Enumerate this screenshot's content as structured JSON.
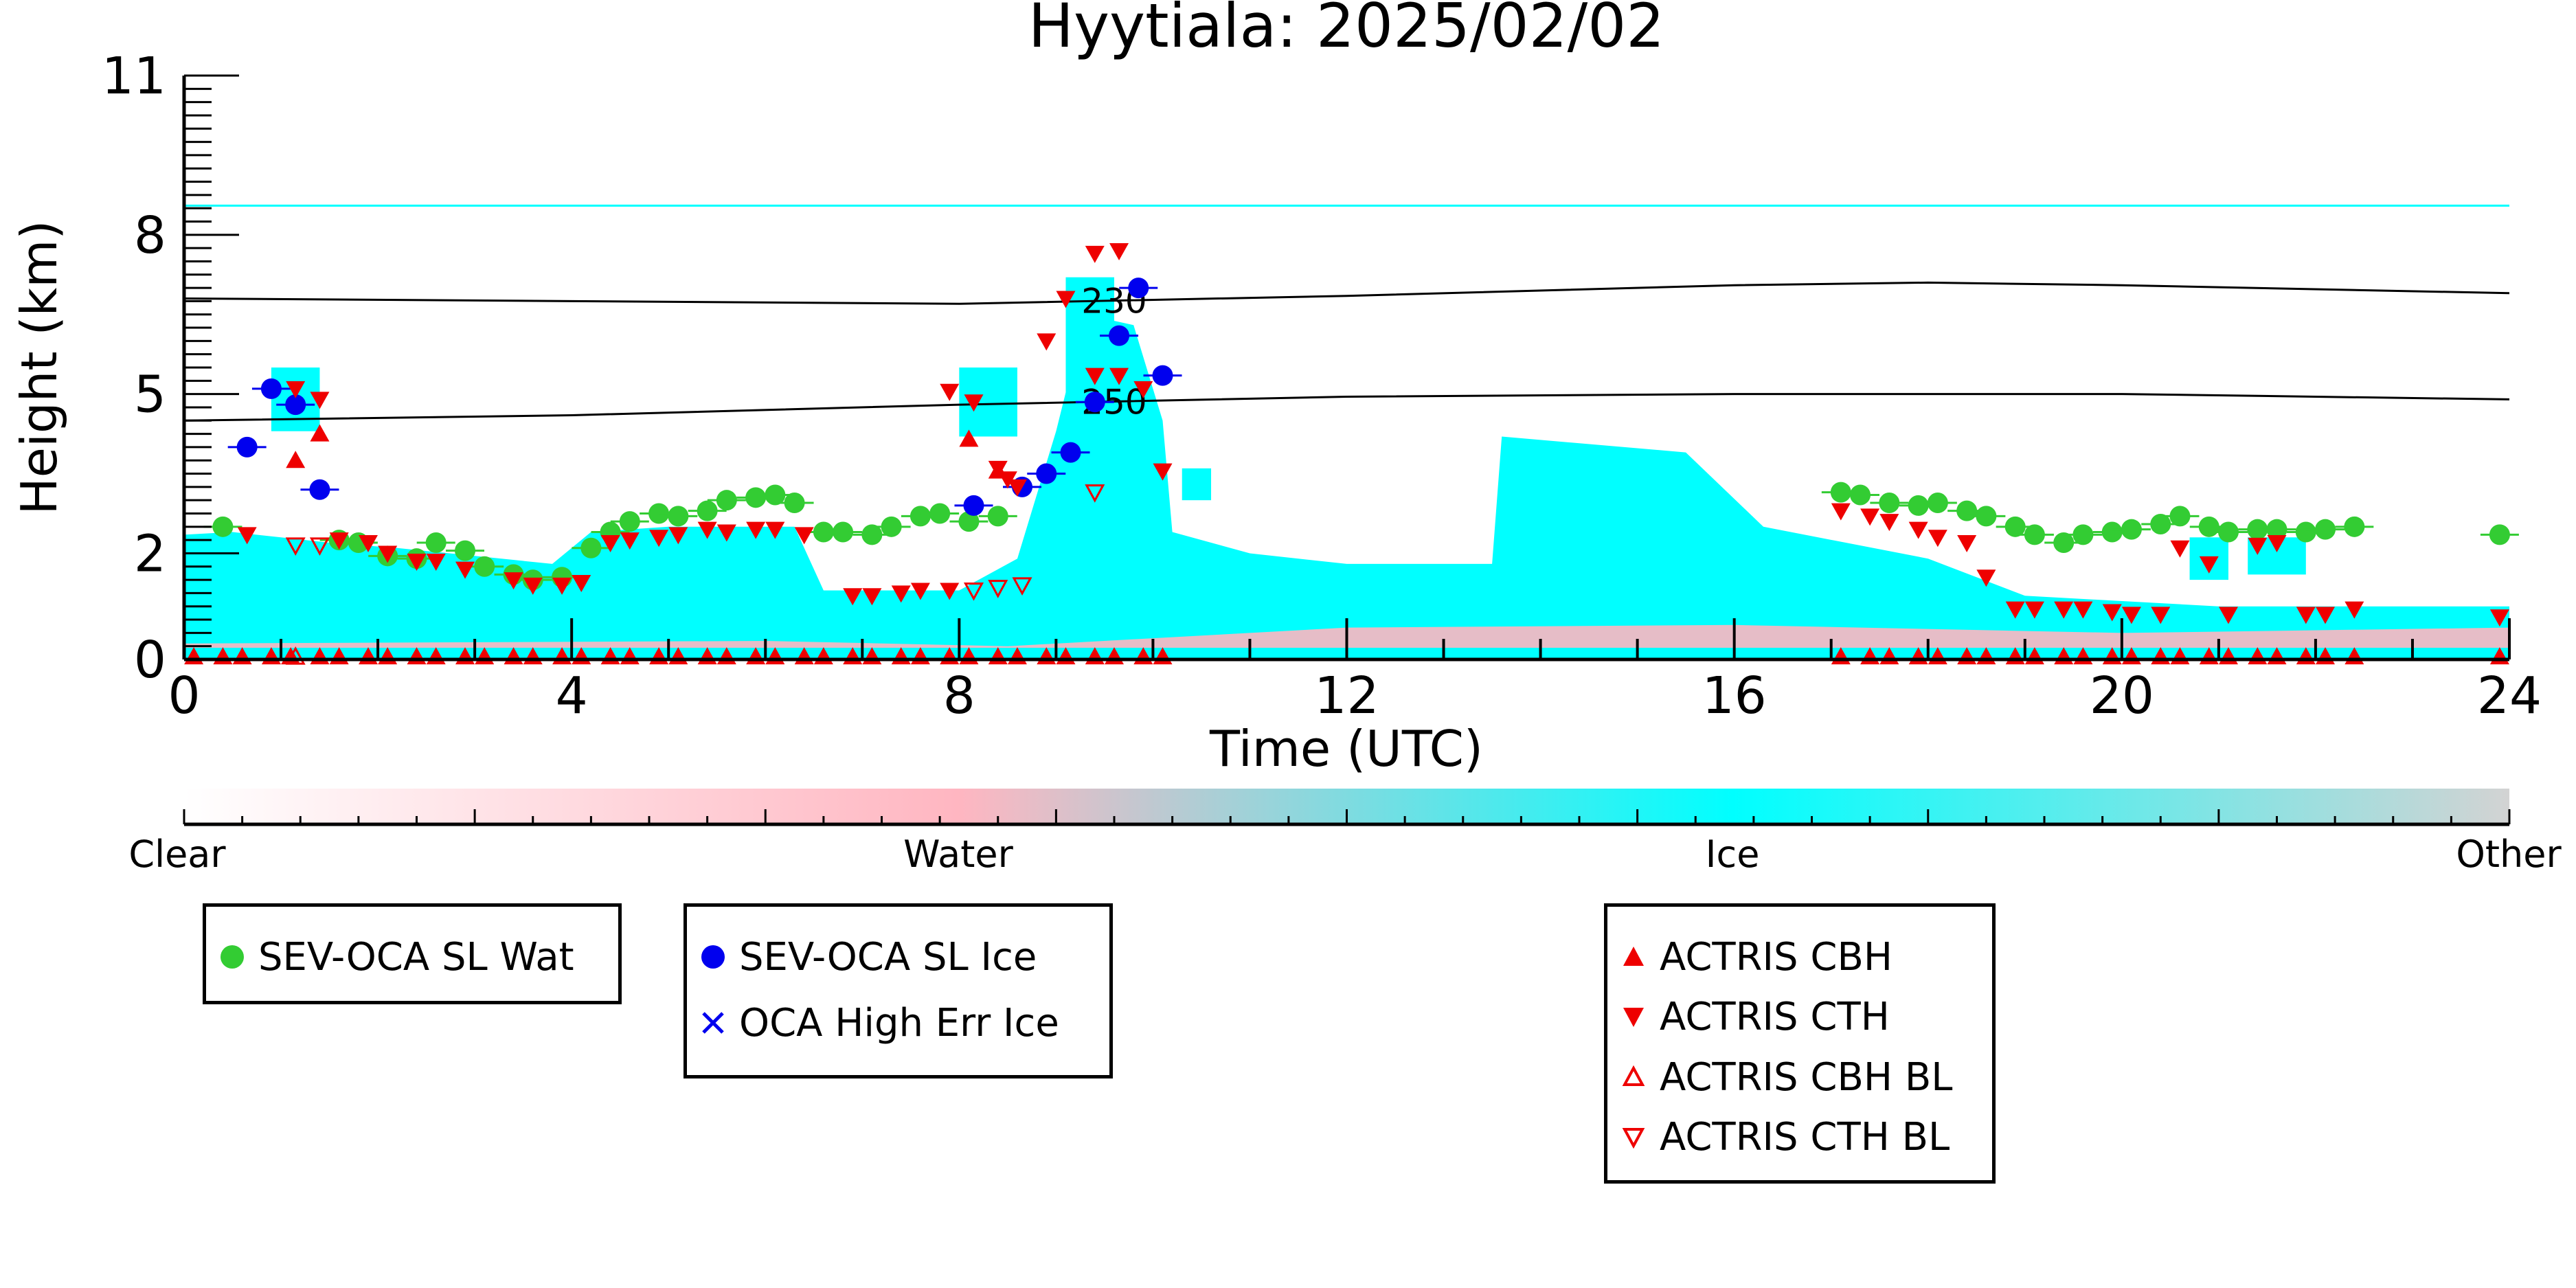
{
  "chart_data": {
    "type": "scatter",
    "title": "Hyytiala: 2025/02/02",
    "xlabel": "Time (UTC)",
    "ylabel": "Height (km)",
    "xlim": [
      0,
      24
    ],
    "ylim": [
      0,
      11
    ],
    "xticks": [
      0,
      4,
      8,
      12,
      16,
      20,
      24
    ],
    "yticks": [
      0,
      2,
      5,
      8,
      11
    ],
    "grid": false,
    "colorbar": {
      "labels": [
        "Clear",
        "Water",
        "Ice",
        "Other"
      ],
      "colors": [
        "#ffffff",
        "#ffb6c1",
        "#00ffff",
        "#d3d3d3"
      ]
    },
    "background_field": {
      "description_colors": {
        "ice": "#00ffff",
        "water": "#ffb6c1"
      },
      "ice_regions": [
        [
          [
            0,
            0
          ],
          [
            0,
            2.35
          ],
          [
            0.5,
            2.4
          ],
          [
            1,
            2.3
          ],
          [
            1.5,
            2.2
          ],
          [
            2.2,
            2.1
          ],
          [
            3,
            1.95
          ],
          [
            3.8,
            1.8
          ],
          [
            4.2,
            2.4
          ],
          [
            5,
            2.5
          ],
          [
            6.3,
            2.5
          ],
          [
            6.6,
            1.3
          ],
          [
            8,
            1.3
          ],
          [
            8.6,
            1.9
          ],
          [
            9,
            4.3
          ],
          [
            9.3,
            6.5
          ],
          [
            9.8,
            6.3
          ],
          [
            10.1,
            4.5
          ],
          [
            10.2,
            2.4
          ],
          [
            11,
            2.0
          ],
          [
            12,
            1.8
          ],
          [
            13.5,
            1.8
          ],
          [
            13.6,
            4.2
          ],
          [
            15.5,
            3.9
          ],
          [
            16.3,
            2.5
          ],
          [
            18,
            1.9
          ],
          [
            19,
            1.2
          ],
          [
            21,
            1.0
          ],
          [
            24,
            1.0
          ],
          [
            24,
            0
          ]
        ]
      ],
      "water_band": [
        [
          0,
          0.3
        ],
        [
          6,
          0.35
        ],
        [
          8.5,
          0.25
        ],
        [
          12,
          0.6
        ],
        [
          16,
          0.65
        ],
        [
          20,
          0.5
        ],
        [
          24,
          0.6
        ]
      ]
    },
    "contour_lines": [
      {
        "label": "230",
        "points": [
          [
            0,
            6.8
          ],
          [
            4,
            6.75
          ],
          [
            8,
            6.7
          ],
          [
            12,
            6.85
          ],
          [
            16,
            7.05
          ],
          [
            18,
            7.1
          ],
          [
            20,
            7.05
          ],
          [
            24,
            6.9
          ]
        ]
      },
      {
        "label": "250",
        "points": [
          [
            0,
            4.5
          ],
          [
            4,
            4.6
          ],
          [
            8,
            4.8
          ],
          [
            12,
            4.95
          ],
          [
            16,
            5.0
          ],
          [
            20,
            5.0
          ],
          [
            24,
            4.9
          ]
        ]
      }
    ],
    "cirrus_line": 8.55,
    "series": [
      {
        "name": "SEV-OCA SL Wat",
        "marker": "circle",
        "color": "#33cc33",
        "x": [
          0.4,
          1.6,
          1.8,
          2.1,
          2.4,
          2.6,
          2.9,
          3.1,
          3.4,
          3.6,
          3.9,
          4.2,
          4.4,
          4.6,
          4.9,
          5.1,
          5.4,
          5.6,
          5.9,
          6.1,
          6.3,
          6.6,
          6.8,
          7.1,
          7.3,
          7.6,
          7.8,
          8.1,
          8.4,
          17.1,
          17.3,
          17.6,
          17.9,
          18.1,
          18.4,
          18.6,
          18.9,
          19.1,
          19.4,
          19.6,
          19.9,
          20.1,
          20.4,
          20.6,
          20.9,
          21.1,
          21.4,
          21.6,
          21.9,
          22.1,
          22.4,
          23.9
        ],
        "y": [
          2.5,
          2.25,
          2.2,
          1.95,
          1.9,
          2.2,
          2.05,
          1.75,
          1.6,
          1.5,
          1.55,
          2.1,
          2.4,
          2.6,
          2.75,
          2.7,
          2.8,
          3.0,
          3.05,
          3.1,
          2.95,
          2.4,
          2.4,
          2.35,
          2.5,
          2.7,
          2.75,
          2.6,
          2.7,
          3.15,
          3.1,
          2.95,
          2.9,
          2.95,
          2.8,
          2.7,
          2.5,
          2.35,
          2.2,
          2.35,
          2.4,
          2.45,
          2.55,
          2.7,
          2.5,
          2.4,
          2.45,
          2.45,
          2.4,
          2.45,
          2.5,
          2.35
        ]
      },
      {
        "name": "SEV-OCA SL Ice",
        "marker": "circle",
        "color": "#0000ee",
        "x": [
          0.65,
          0.9,
          1.15,
          1.4,
          8.15,
          8.65,
          8.9,
          9.15,
          9.4,
          9.65,
          9.85,
          10.1
        ],
        "y": [
          4.0,
          5.1,
          4.8,
          3.2,
          2.9,
          3.25,
          3.5,
          3.9,
          4.85,
          6.1,
          7.0,
          5.35
        ]
      },
      {
        "name": "OCA High Err Ice",
        "marker": "x",
        "color": "#0000ee",
        "x": [],
        "y": []
      },
      {
        "name": "ACTRIS CBH",
        "marker": "triangle-up",
        "color": "#ee0000",
        "x": [
          0.1,
          0.4,
          0.6,
          0.9,
          1.1,
          1.4,
          1.6,
          1.9,
          2.1,
          2.4,
          2.6,
          2.9,
          3.1,
          3.4,
          3.6,
          3.9,
          4.1,
          4.4,
          4.6,
          4.9,
          5.1,
          5.4,
          5.6,
          5.9,
          6.1,
          6.4,
          6.6,
          6.9,
          7.1,
          7.4,
          7.6,
          7.9,
          8.1,
          8.4,
          8.6,
          8.9,
          9.1,
          9.4,
          9.6,
          9.9,
          10.1,
          1.15,
          1.4,
          8.1,
          8.4,
          17.1,
          17.4,
          17.6,
          17.9,
          18.1,
          18.4,
          18.6,
          18.9,
          19.1,
          19.4,
          19.6,
          19.9,
          20.1,
          20.4,
          20.6,
          20.9,
          21.1,
          21.4,
          21.6,
          21.9,
          22.1,
          22.4,
          23.9
        ],
        "y": [
          0.05,
          0.05,
          0.05,
          0.05,
          0.05,
          0.05,
          0.05,
          0.05,
          0.05,
          0.05,
          0.05,
          0.05,
          0.05,
          0.05,
          0.05,
          0.05,
          0.05,
          0.05,
          0.05,
          0.05,
          0.05,
          0.05,
          0.05,
          0.05,
          0.05,
          0.05,
          0.05,
          0.05,
          0.05,
          0.05,
          0.05,
          0.05,
          0.05,
          0.05,
          0.05,
          0.05,
          0.05,
          0.05,
          0.05,
          0.05,
          0.05,
          3.75,
          4.25,
          4.15,
          3.55,
          0.05,
          0.05,
          0.05,
          0.05,
          0.05,
          0.05,
          0.05,
          0.05,
          0.05,
          0.05,
          0.05,
          0.05,
          0.05,
          0.05,
          0.05,
          0.05,
          0.05,
          0.05,
          0.05,
          0.05,
          0.05,
          0.05,
          0.05
        ]
      },
      {
        "name": "ACTRIS CTH",
        "marker": "triangle-down",
        "color": "#ee0000",
        "x": [
          0.65,
          1.15,
          1.4,
          1.6,
          1.9,
          2.1,
          2.4,
          2.6,
          2.9,
          3.4,
          3.6,
          3.9,
          4.1,
          4.4,
          4.6,
          4.9,
          5.1,
          5.4,
          5.6,
          5.9,
          6.1,
          6.4,
          6.9,
          7.1,
          7.4,
          7.6,
          7.9,
          8.4,
          8.6,
          8.9,
          9.1,
          9.4,
          9.65,
          9.9,
          10.1,
          17.1,
          17.4,
          17.6,
          17.9,
          18.1,
          18.4,
          18.6,
          18.9,
          19.1,
          19.4,
          19.6,
          19.9,
          20.1,
          20.4,
          20.6,
          20.9,
          21.1,
          21.4,
          21.6,
          21.9,
          22.1,
          22.4,
          23.9,
          7.9,
          8.15,
          8.5,
          9.4,
          9.65
        ],
        "y": [
          2.35,
          5.1,
          4.9,
          2.25,
          2.2,
          2.0,
          1.85,
          1.85,
          1.7,
          1.5,
          1.4,
          1.4,
          1.45,
          2.2,
          2.25,
          2.3,
          2.35,
          2.45,
          2.4,
          2.45,
          2.45,
          2.35,
          1.2,
          1.2,
          1.25,
          1.3,
          1.3,
          3.6,
          3.25,
          6.0,
          6.8,
          7.65,
          7.7,
          5.1,
          3.55,
          2.8,
          2.7,
          2.6,
          2.45,
          2.3,
          2.2,
          1.55,
          0.95,
          0.95,
          0.95,
          0.95,
          0.9,
          0.85,
          0.85,
          2.1,
          1.8,
          0.85,
          2.15,
          2.2,
          0.85,
          0.85,
          0.95,
          0.8,
          5.05,
          4.85,
          3.4,
          5.35,
          5.35
        ]
      },
      {
        "name": "ACTRIS CBH BL",
        "marker": "triangle-up-open",
        "color": "#ee0000",
        "x": [
          1.15
        ],
        "y": [
          0.05
        ]
      },
      {
        "name": "ACTRIS CTH BL",
        "marker": "triangle-down-open",
        "color": "#ee0000",
        "x": [
          1.15,
          1.4,
          8.15,
          8.4,
          8.65,
          9.4
        ],
        "y": [
          2.15,
          2.15,
          1.3,
          1.35,
          1.4,
          3.15
        ]
      }
    ]
  },
  "legend": {
    "box1": [
      "SEV-OCA SL Wat"
    ],
    "box2": [
      "SEV-OCA SL Ice",
      "OCA High Err Ice"
    ],
    "box3": [
      "ACTRIS CBH",
      "ACTRIS CTH",
      "ACTRIS CBH BL",
      "ACTRIS CTH BL"
    ]
  }
}
